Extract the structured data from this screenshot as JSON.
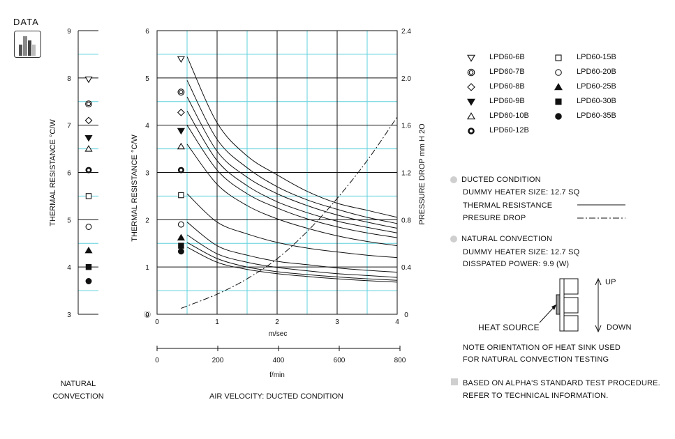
{
  "badge": {
    "label": "DATA",
    "icon": "bar-chart-icon"
  },
  "colors": {
    "grid_cyan": "#5fd0dc",
    "ink": "#111111",
    "bullet_gray": "#cfcfcf",
    "icon_gray": "#8a8a8a"
  },
  "chart_data": [
    {
      "type": "scatter",
      "name_text": "",
      "ylabel": "THERMAL  RESISTANCE  °C/W",
      "ylim": [
        3,
        9
      ],
      "yticks": [
        "3",
        "4",
        "5",
        "6",
        "7",
        "8",
        "9"
      ],
      "caption": [
        "NATURAL",
        "CONVECTION"
      ],
      "points": [
        {
          "series": "LPD60-6B",
          "marker": "triangle-down-open",
          "y": 7.97
        },
        {
          "series": "LPD60-7B",
          "marker": "double-circle",
          "y": 7.45
        },
        {
          "series": "LPD60-8B",
          "marker": "diamond-open",
          "y": 7.1
        },
        {
          "series": "LPD60-9B",
          "marker": "triangle-down-filled",
          "y": 6.73
        },
        {
          "series": "LPD60-10B",
          "marker": "triangle-up-open",
          "y": 6.5
        },
        {
          "series": "LPD60-12B",
          "marker": "thick-ring",
          "y": 6.05
        },
        {
          "series": "LPD60-15B",
          "marker": "square-open",
          "y": 5.5
        },
        {
          "series": "LPD60-20B",
          "marker": "circle-open",
          "y": 4.85
        },
        {
          "series": "LPD60-25B",
          "marker": "triangle-up-filled",
          "y": 4.35
        },
        {
          "series": "LPD60-30B",
          "marker": "square-filled",
          "y": 4.0
        },
        {
          "series": "LPD60-35B",
          "marker": "circle-filled",
          "y": 3.7
        }
      ]
    },
    {
      "type": "line",
      "ylabel": "THERMAL  RESISTANCE  °C/W",
      "y2label": "PRESSURE  DROP     mm H 2O",
      "xlabel": "m/sec",
      "x2label": "f/min",
      "caption": "AIR VELOCITY:  DUCTED CONDITION",
      "xlim": [
        0,
        4
      ],
      "ylim": [
        0,
        6
      ],
      "y2lim": [
        0,
        2.4
      ],
      "x2lim": [
        0,
        800
      ],
      "xticks": [
        "0",
        "1",
        "2",
        "3",
        "4"
      ],
      "yticks": [
        "0",
        "1",
        "2",
        "3",
        "4",
        "5",
        "6"
      ],
      "y2ticks": [
        "0",
        "0.4",
        "0.8",
        "1.2",
        "1.6",
        "2.0",
        "2.4"
      ],
      "x2ticks": [
        "0",
        "200",
        "400",
        "600",
        "800"
      ],
      "origin_symbol": "⓪",
      "markers_at_x": 0.4,
      "markers": [
        {
          "series": "LPD60-6B",
          "marker": "triangle-down-open",
          "y": 5.4
        },
        {
          "series": "LPD60-7B",
          "marker": "double-circle",
          "y": 4.7
        },
        {
          "series": "LPD60-8B",
          "marker": "diamond-open",
          "y": 4.27
        },
        {
          "series": "LPD60-9B",
          "marker": "triangle-down-filled",
          "y": 3.88
        },
        {
          "series": "LPD60-10B",
          "marker": "triangle-up-open",
          "y": 3.55
        },
        {
          "series": "LPD60-12B",
          "marker": "thick-ring",
          "y": 3.05
        },
        {
          "series": "LPD60-15B",
          "marker": "square-open",
          "y": 2.52
        },
        {
          "series": "LPD60-20B",
          "marker": "circle-open",
          "y": 1.9
        },
        {
          "series": "LPD60-25B",
          "marker": "triangle-up-filled",
          "y": 1.62
        },
        {
          "series": "LPD60-30B",
          "marker": "square-filled",
          "y": 1.45
        },
        {
          "series": "LPD60-35B",
          "marker": "circle-filled",
          "y": 1.33
        }
      ],
      "x": [
        0.5,
        1,
        1.5,
        2,
        2.5,
        3,
        3.5,
        4
      ],
      "series": [
        {
          "values": [
            5.45,
            4.05,
            3.35,
            2.95,
            2.6,
            2.35,
            2.2,
            2.05
          ]
        },
        {
          "values": [
            4.95,
            3.7,
            3.1,
            2.7,
            2.42,
            2.22,
            2.05,
            1.92
          ]
        },
        {
          "values": [
            4.6,
            3.45,
            2.9,
            2.55,
            2.3,
            2.1,
            1.95,
            1.82
          ]
        },
        {
          "values": [
            4.3,
            3.25,
            2.72,
            2.38,
            2.15,
            1.97,
            1.84,
            1.72
          ]
        },
        {
          "values": [
            4.0,
            3.05,
            2.55,
            2.25,
            2.02,
            1.85,
            1.72,
            1.62
          ]
        },
        {
          "values": [
            3.6,
            2.75,
            2.3,
            2.02,
            1.82,
            1.66,
            1.54,
            1.45
          ]
        },
        {
          "values": [
            2.55,
            1.95,
            1.7,
            1.52,
            1.4,
            1.32,
            1.25,
            1.2
          ]
        },
        {
          "values": [
            1.95,
            1.45,
            1.25,
            1.12,
            1.05,
            0.98,
            0.93,
            0.89
          ]
        },
        {
          "values": [
            1.68,
            1.28,
            1.1,
            0.99,
            0.92,
            0.86,
            0.82,
            0.78
          ]
        },
        {
          "values": [
            1.52,
            1.18,
            1.0,
            0.9,
            0.84,
            0.79,
            0.75,
            0.72
          ]
        },
        {
          "values": [
            1.42,
            1.1,
            0.95,
            0.86,
            0.8,
            0.75,
            0.71,
            0.68
          ]
        }
      ],
      "pressure_drop": {
        "x": [
          0.4,
          1,
          1.5,
          2,
          2.5,
          3,
          3.5,
          4
        ],
        "values": [
          0.05,
          0.17,
          0.3,
          0.47,
          0.7,
          0.98,
          1.3,
          1.67
        ]
      }
    }
  ],
  "legend": [
    {
      "label": "LPD60-6B",
      "marker": "triangle-down-open"
    },
    {
      "label": "LPD60-7B",
      "marker": "double-circle"
    },
    {
      "label": "LPD60-8B",
      "marker": "diamond-open"
    },
    {
      "label": "LPD60-9B",
      "marker": "triangle-down-filled"
    },
    {
      "label": "LPD60-10B",
      "marker": "triangle-up-open"
    },
    {
      "label": "LPD60-12B",
      "marker": "thick-ring"
    },
    {
      "label": "LPD60-15B",
      "marker": "square-open"
    },
    {
      "label": "LPD60-20B",
      "marker": "circle-open"
    },
    {
      "label": "LPD60-25B",
      "marker": "triangle-up-filled"
    },
    {
      "label": "LPD60-30B",
      "marker": "square-filled"
    },
    {
      "label": "LPD60-35B",
      "marker": "circle-filled"
    }
  ],
  "notes": {
    "ducted_title": "DUCTED CONDITION",
    "ducted_heater": "DUMMY HEATER SIZE: 12.7 SQ",
    "thermal_resistance": "THERMAL RESISTANCE",
    "pressure_drop": "PRESURE DROP",
    "natural_title": "NATURAL CONVECTION",
    "natural_heater": "DUMMY HEATER SIZE: 12.7 SQ",
    "dissipated": "DISSPATED POWER: 9.9 (W)",
    "up": "UP",
    "down": "DOWN",
    "heat_source": "HEAT SOURCE",
    "orientation_1": "NOTE ORIENTATION OF HEAT SINK USED",
    "orientation_2": "FOR NATURAL CONVECTION TESTING",
    "procedure_1": "BASED ON ALPHA'S STANDARD TEST PROCEDURE.",
    "procedure_2": "REFER TO TECHNICAL INFORMATION."
  }
}
